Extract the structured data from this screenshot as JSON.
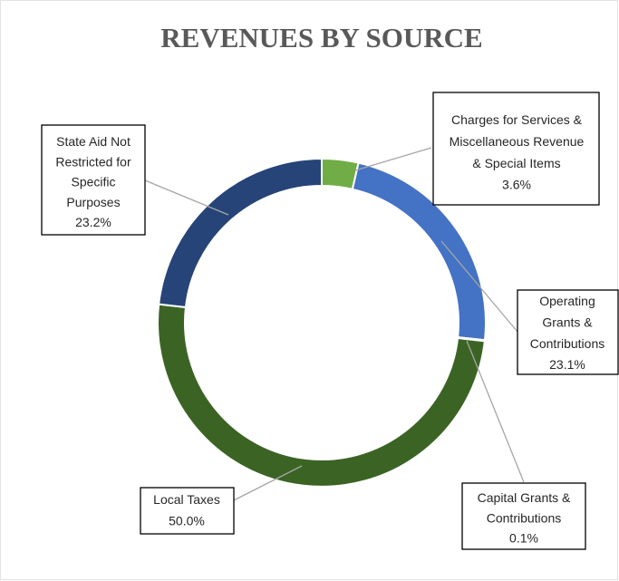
{
  "chart_data": {
    "type": "donut",
    "title": "REVENUES BY SOURCE",
    "categories": [
      "Charges for Services & Miscellaneous Revenue & Special Items",
      "Operating Grants & Contributions",
      "Capital Grants & Contributions",
      "Local Taxes",
      "State Aid Not Restricted for Specific Purposes"
    ],
    "values": [
      3.6,
      23.1,
      0.1,
      50.0,
      23.2
    ],
    "value_labels": [
      "3.6%",
      "23.1%",
      "0.1%",
      "50.0%",
      "23.2%"
    ],
    "colors": [
      "#70ad47",
      "#4472c4",
      "#a5a5a5",
      "#3b6424",
      "#264478"
    ]
  }
}
